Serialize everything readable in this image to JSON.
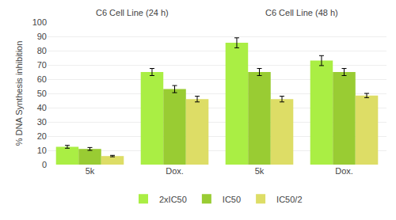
{
  "chart_data": {
    "type": "bar",
    "categories": [
      "5k",
      "Dox.",
      "5k",
      "Dox."
    ],
    "series": [
      {
        "name": "2xIC50",
        "color": "#aaee44",
        "values": [
          12.5,
          65.0,
          85.5,
          73.0
        ],
        "errors": [
          1.0,
          2.5,
          3.5,
          3.5
        ]
      },
      {
        "name": "IC50",
        "color": "#99cc33",
        "values": [
          11.0,
          53.0,
          65.0,
          65.0
        ],
        "errors": [
          1.0,
          2.5,
          2.5,
          2.5
        ]
      },
      {
        "name": "IC50/2",
        "color": "#dddd66",
        "values": [
          6.0,
          46.0,
          46.0,
          48.5
        ],
        "errors": [
          0.5,
          2.0,
          2.0,
          1.5
        ]
      }
    ],
    "annotations": [
      "C6 Cell Line (24 h)",
      "C6 Cell Line (48 h)"
    ],
    "ylabel": "% DNA Synthesis inhibition",
    "ylim": [
      0,
      100
    ],
    "yticks": [
      0,
      10,
      20,
      30,
      40,
      50,
      60,
      70,
      80,
      90,
      100
    ],
    "grid": true,
    "legend": "bottom"
  }
}
